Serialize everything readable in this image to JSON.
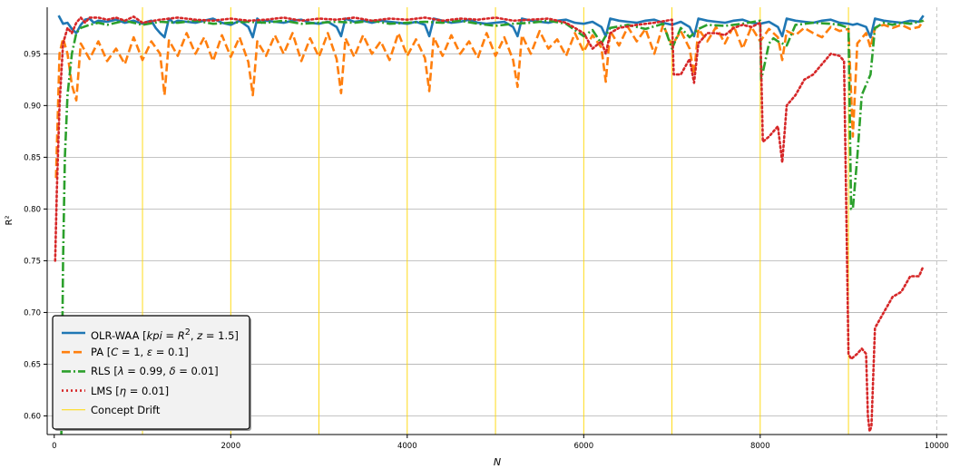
{
  "chart_data": {
    "type": "line",
    "title": "",
    "xlabel": "N",
    "ylabel": "R²",
    "xlim": [
      -80,
      10120
    ],
    "ylim": [
      0.582,
      0.995
    ],
    "x_ticks": [
      0,
      2000,
      4000,
      6000,
      8000,
      10000
    ],
    "y_ticks": [
      0.6,
      0.65,
      0.7,
      0.75,
      0.8,
      0.85,
      0.9,
      0.95
    ],
    "x_tick_labels": [
      "0",
      "2000",
      "4000",
      "6000",
      "8000",
      "10000"
    ],
    "y_tick_labels": [
      "0.60",
      "0.65",
      "0.70",
      "0.75",
      "0.80",
      "0.85",
      "0.90",
      "0.95"
    ],
    "grid": "horizontal",
    "legend_position": "lower-left",
    "concept_drift_x": [
      1000,
      2000,
      3000,
      4000,
      5000,
      6000,
      7000,
      8000,
      9000
    ],
    "end_marker_x": 10000,
    "series": [
      {
        "name": "OLR-WAA [kpi = R², z = 1.5]",
        "legend_html": "OLR-WAA [<i>kpi</i> = <i>R</i><sup>2</sup>, <i>z</i> = 1.5]",
        "color": "#1f77b4",
        "style": "solid",
        "x": [
          50,
          100,
          150,
          200,
          250,
          300,
          350,
          400,
          450,
          500,
          600,
          700,
          800,
          900,
          1000,
          1050,
          1100,
          1150,
          1200,
          1250,
          1300,
          1350,
          1400,
          1500,
          1600,
          1700,
          1800,
          1900,
          2000,
          2100,
          2200,
          2250,
          2300,
          2350,
          2400,
          2500,
          2600,
          2700,
          2800,
          2900,
          3000,
          3100,
          3200,
          3250,
          3300,
          3400,
          3500,
          3600,
          3700,
          3800,
          3900,
          4000,
          4100,
          4200,
          4250,
          4300,
          4400,
          4500,
          4600,
          4700,
          4800,
          4900,
          5000,
          5100,
          5200,
          5250,
          5300,
          5400,
          5500,
          5600,
          5700,
          5800,
          5900,
          6000,
          6100,
          6200,
          6250,
          6300,
          6400,
          6500,
          6600,
          6700,
          6800,
          6900,
          7000,
          7100,
          7200,
          7250,
          7300,
          7400,
          7500,
          7600,
          7700,
          7800,
          7900,
          8000,
          8100,
          8200,
          8250,
          8300,
          8400,
          8500,
          8600,
          8700,
          8800,
          8900,
          9000,
          9050,
          9100,
          9200,
          9250,
          9300,
          9400,
          9500,
          9600,
          9700,
          9800,
          9850
        ],
        "y": [
          0.987,
          0.979,
          0.98,
          0.974,
          0.97,
          0.978,
          0.983,
          0.984,
          0.98,
          0.982,
          0.981,
          0.983,
          0.98,
          0.982,
          0.979,
          0.981,
          0.982,
          0.975,
          0.97,
          0.966,
          0.984,
          0.98,
          0.982,
          0.981,
          0.98,
          0.982,
          0.984,
          0.98,
          0.978,
          0.982,
          0.976,
          0.966,
          0.984,
          0.98,
          0.982,
          0.981,
          0.98,
          0.982,
          0.983,
          0.98,
          0.979,
          0.981,
          0.976,
          0.967,
          0.984,
          0.981,
          0.982,
          0.98,
          0.982,
          0.981,
          0.98,
          0.979,
          0.981,
          0.978,
          0.967,
          0.984,
          0.982,
          0.98,
          0.981,
          0.983,
          0.98,
          0.979,
          0.98,
          0.981,
          0.976,
          0.967,
          0.984,
          0.982,
          0.981,
          0.98,
          0.982,
          0.983,
          0.98,
          0.979,
          0.981,
          0.976,
          0.967,
          0.984,
          0.982,
          0.981,
          0.98,
          0.982,
          0.983,
          0.98,
          0.978,
          0.981,
          0.976,
          0.967,
          0.984,
          0.982,
          0.981,
          0.98,
          0.982,
          0.983,
          0.98,
          0.979,
          0.981,
          0.976,
          0.967,
          0.984,
          0.982,
          0.981,
          0.98,
          0.982,
          0.983,
          0.98,
          0.979,
          0.978,
          0.979,
          0.976,
          0.966,
          0.984,
          0.982,
          0.981,
          0.98,
          0.982,
          0.981,
          0.987
        ]
      },
      {
        "name": "PA [C = 1, ε = 0.1]",
        "legend_html": "PA [<i>C</i> = 1, <i>ε</i> = 0.1]",
        "color": "#ff7f0e",
        "style": "dashed",
        "x": [
          20,
          60,
          100,
          150,
          200,
          250,
          300,
          400,
          500,
          600,
          700,
          800,
          900,
          1000,
          1100,
          1200,
          1250,
          1300,
          1400,
          1500,
          1600,
          1700,
          1800,
          1900,
          2000,
          2100,
          2200,
          2250,
          2300,
          2400,
          2500,
          2600,
          2700,
          2800,
          2900,
          3000,
          3100,
          3200,
          3250,
          3300,
          3400,
          3500,
          3600,
          3700,
          3800,
          3900,
          4000,
          4100,
          4200,
          4250,
          4300,
          4400,
          4500,
          4600,
          4700,
          4800,
          4900,
          5000,
          5100,
          5200,
          5250,
          5300,
          5400,
          5500,
          5600,
          5700,
          5800,
          5900,
          6000,
          6100,
          6200,
          6250,
          6300,
          6400,
          6500,
          6600,
          6700,
          6800,
          6900,
          7000,
          7100,
          7200,
          7250,
          7300,
          7400,
          7500,
          7600,
          7700,
          7800,
          7900,
          8000,
          8100,
          8200,
          8250,
          8300,
          8400,
          8500,
          8600,
          8700,
          8800,
          8900,
          9000,
          9050,
          9100,
          9200,
          9250,
          9300,
          9400,
          9500,
          9600,
          9700,
          9800,
          9850
        ],
        "y": [
          0.83,
          0.95,
          0.965,
          0.95,
          0.92,
          0.905,
          0.96,
          0.945,
          0.962,
          0.943,
          0.955,
          0.94,
          0.966,
          0.944,
          0.962,
          0.95,
          0.91,
          0.963,
          0.948,
          0.97,
          0.95,
          0.966,
          0.943,
          0.968,
          0.947,
          0.966,
          0.942,
          0.91,
          0.962,
          0.948,
          0.968,
          0.95,
          0.97,
          0.943,
          0.965,
          0.947,
          0.97,
          0.945,
          0.912,
          0.965,
          0.947,
          0.968,
          0.95,
          0.962,
          0.944,
          0.97,
          0.948,
          0.964,
          0.946,
          0.914,
          0.966,
          0.948,
          0.968,
          0.95,
          0.962,
          0.946,
          0.97,
          0.948,
          0.966,
          0.944,
          0.918,
          0.968,
          0.95,
          0.972,
          0.955,
          0.964,
          0.948,
          0.97,
          0.952,
          0.968,
          0.956,
          0.923,
          0.972,
          0.958,
          0.976,
          0.962,
          0.974,
          0.95,
          0.978,
          0.958,
          0.972,
          0.955,
          0.93,
          0.974,
          0.962,
          0.976,
          0.96,
          0.977,
          0.955,
          0.976,
          0.962,
          0.974,
          0.966,
          0.944,
          0.972,
          0.968,
          0.975,
          0.97,
          0.966,
          0.976,
          0.972,
          0.974,
          0.87,
          0.96,
          0.97,
          0.956,
          0.975,
          0.978,
          0.975,
          0.978,
          0.974,
          0.976,
          0.982
        ]
      },
      {
        "name": "RLS [λ = 0.99, δ = 0.01]",
        "legend_html": "RLS [<i>λ</i> = 0.99, <i>δ</i> = 0.01]",
        "color": "#2ca02c",
        "style": "dashdot",
        "x": [
          80,
          100,
          120,
          150,
          200,
          250,
          300,
          400,
          500,
          600,
          700,
          800,
          900,
          1000,
          1200,
          1400,
          1600,
          1800,
          2000,
          2200,
          2400,
          2600,
          2800,
          3000,
          3200,
          3400,
          3600,
          3800,
          4000,
          4200,
          4400,
          4600,
          4800,
          5000,
          5200,
          5400,
          5600,
          5800,
          6000,
          6100,
          6200,
          6300,
          6500,
          6700,
          6900,
          7000,
          7100,
          7200,
          7300,
          7400,
          7600,
          7800,
          8000,
          8010,
          8050,
          8100,
          8150,
          8200,
          8300,
          8400,
          8600,
          8800,
          8900,
          9000,
          9030,
          9050,
          9100,
          9150,
          9200,
          9250,
          9300,
          9400,
          9500,
          9600,
          9700,
          9800,
          9850
        ],
        "y": [
          0.58,
          0.75,
          0.85,
          0.91,
          0.95,
          0.97,
          0.975,
          0.978,
          0.98,
          0.978,
          0.98,
          0.982,
          0.98,
          0.978,
          0.981,
          0.98,
          0.982,
          0.979,
          0.98,
          0.981,
          0.98,
          0.982,
          0.979,
          0.98,
          0.981,
          0.98,
          0.982,
          0.979,
          0.98,
          0.981,
          0.98,
          0.982,
          0.979,
          0.977,
          0.979,
          0.98,
          0.982,
          0.979,
          0.967,
          0.973,
          0.96,
          0.975,
          0.978,
          0.974,
          0.979,
          0.955,
          0.975,
          0.966,
          0.974,
          0.978,
          0.977,
          0.979,
          0.982,
          0.925,
          0.94,
          0.96,
          0.965,
          0.962,
          0.958,
          0.978,
          0.98,
          0.979,
          0.978,
          0.975,
          0.8,
          0.8,
          0.85,
          0.91,
          0.92,
          0.93,
          0.975,
          0.98,
          0.978,
          0.98,
          0.979,
          0.981,
          0.982
        ]
      },
      {
        "name": "LMS [η = 0.01]",
        "legend_html": "LMS [<i>η</i> = 0.01]",
        "color": "#d62728",
        "style": "dotted",
        "x": [
          10,
          30,
          60,
          100,
          150,
          200,
          250,
          300,
          350,
          400,
          500,
          600,
          700,
          800,
          900,
          1000,
          1200,
          1400,
          1600,
          1800,
          2000,
          2200,
          2400,
          2600,
          2800,
          3000,
          3200,
          3400,
          3600,
          3800,
          4000,
          4200,
          4400,
          4600,
          4800,
          5000,
          5200,
          5400,
          5600,
          5800,
          6000,
          6100,
          6200,
          6250,
          6300,
          6400,
          6600,
          6800,
          7000,
          7020,
          7100,
          7200,
          7250,
          7300,
          7400,
          7500,
          7600,
          7700,
          7800,
          7900,
          8000,
          8030,
          8100,
          8200,
          8250,
          8300,
          8400,
          8500,
          8600,
          8700,
          8800,
          8900,
          8950,
          9000,
          9030,
          9100,
          9150,
          9200,
          9220,
          9240,
          9260,
          9300,
          9400,
          9500,
          9600,
          9700,
          9800,
          9850
        ],
        "y": [
          0.75,
          0.82,
          0.9,
          0.96,
          0.975,
          0.97,
          0.98,
          0.985,
          0.98,
          0.985,
          0.985,
          0.983,
          0.985,
          0.982,
          0.986,
          0.98,
          0.983,
          0.985,
          0.983,
          0.982,
          0.984,
          0.982,
          0.983,
          0.985,
          0.982,
          0.984,
          0.983,
          0.985,
          0.982,
          0.984,
          0.983,
          0.985,
          0.982,
          0.984,
          0.983,
          0.985,
          0.982,
          0.983,
          0.984,
          0.98,
          0.97,
          0.955,
          0.962,
          0.95,
          0.97,
          0.975,
          0.978,
          0.98,
          0.983,
          0.93,
          0.93,
          0.945,
          0.922,
          0.96,
          0.97,
          0.97,
          0.968,
          0.975,
          0.978,
          0.976,
          0.98,
          0.865,
          0.87,
          0.88,
          0.845,
          0.9,
          0.91,
          0.925,
          0.93,
          0.94,
          0.95,
          0.948,
          0.943,
          0.66,
          0.655,
          0.66,
          0.665,
          0.66,
          0.6,
          0.585,
          0.59,
          0.685,
          0.7,
          0.715,
          0.72,
          0.735,
          0.735,
          0.745
        ]
      },
      {
        "name": "Concept Drift",
        "legend_html": "Concept Drift",
        "color": "#ffd700",
        "style": "thin"
      }
    ]
  }
}
